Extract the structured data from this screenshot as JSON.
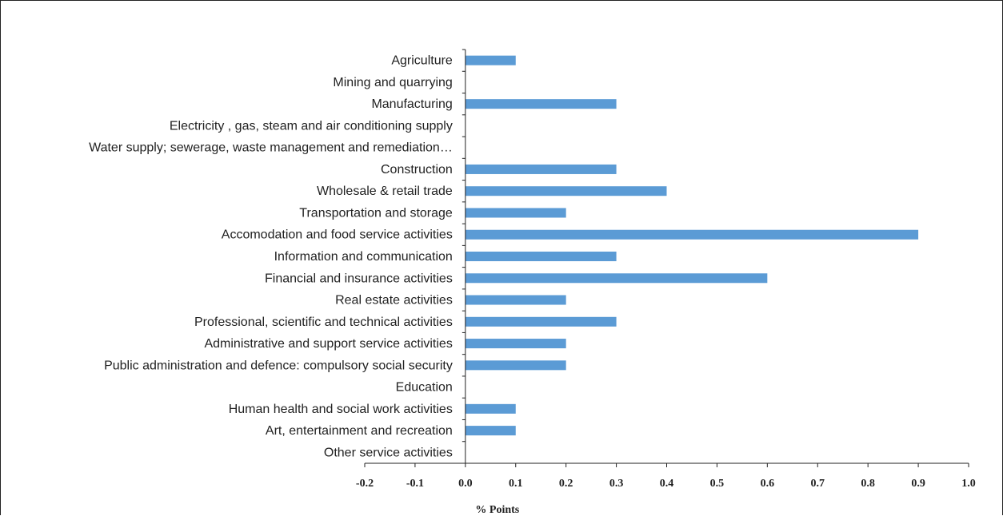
{
  "chart_data": {
    "type": "bar",
    "orientation": "horizontal",
    "title": "",
    "xlabel": "% Points",
    "ylabel": "",
    "xlim": [
      -0.2,
      1.0
    ],
    "x_ticks": [
      "-0.2",
      "-0.1",
      "0.0",
      "0.1",
      "0.2",
      "0.3",
      "0.4",
      "0.5",
      "0.6",
      "0.7",
      "0.8",
      "0.9",
      "1.0"
    ],
    "grid": false,
    "legend": "none",
    "bar_color": "#5b9bd5",
    "categories": [
      "Agriculture",
      "Mining and quarrying",
      "Manufacturing",
      "Electricity , gas, steam and air conditioning supply",
      "Water supply; sewerage, waste management and remediation…",
      "Construction",
      "Wholesale & retail trade",
      "Transportation and storage",
      "Accomodation and food service activities",
      "Information and communication",
      "Financial and insurance activities",
      "Real estate activities",
      "Professional, scientific and technical activities",
      "Administrative and support service activities",
      "Public administration  and defence: compulsory social security",
      "Education",
      "Human health and social work activities",
      "Art, entertainment and recreation",
      "Other service activities"
    ],
    "values": [
      0.1,
      0.0,
      0.3,
      0.0,
      0.0,
      0.3,
      0.4,
      0.2,
      0.9,
      0.3,
      0.6,
      0.2,
      0.3,
      0.2,
      0.2,
      0.0,
      0.1,
      0.1,
      0.0
    ]
  }
}
